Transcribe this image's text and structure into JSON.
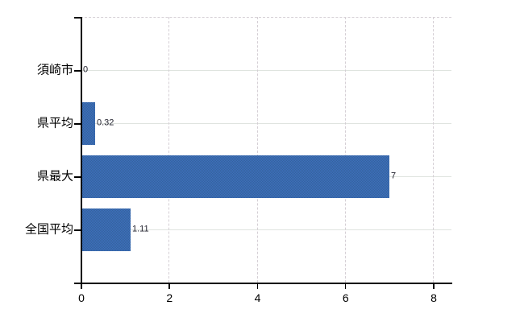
{
  "chart_data": {
    "type": "bar",
    "orientation": "horizontal",
    "title": "",
    "xlabel": "",
    "ylabel": "",
    "categories": [
      "須崎市",
      "県平均",
      "県最大",
      "全国平均"
    ],
    "values": [
      0,
      0.32,
      7,
      1.11
    ],
    "value_labels": [
      "0",
      "0.32",
      "7",
      "1.11"
    ],
    "x_ticks": [
      "0",
      "2",
      "4",
      "6",
      "8"
    ],
    "x_tick_values": [
      0,
      2,
      4,
      6,
      8
    ],
    "xlim": [
      0,
      8.42
    ],
    "grid": "on",
    "legend_position": "none",
    "colors": {
      "bar_dither_light": "#3d6fbe",
      "bar_dither_dark": "#35639c",
      "bar_average": "#3a69ad",
      "gridline_horizontal": "#dfe4df",
      "gridline_vertical_dashed": "#d5cfd5",
      "axis": "#000000",
      "text": "#000000"
    }
  }
}
